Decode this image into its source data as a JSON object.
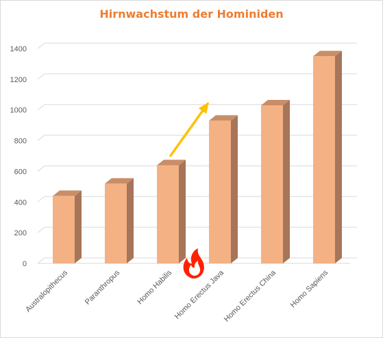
{
  "chart_data": {
    "type": "bar",
    "title": "Hirnwachstum der Hominiden",
    "categories": [
      "Australopithecus",
      "Paranthropus",
      "Homo Habilis",
      "Homo Erectus Java",
      "Homo Erectus China",
      "Homo Sapiens"
    ],
    "values": [
      440,
      520,
      640,
      930,
      1030,
      1350
    ],
    "ylim": [
      0,
      1400
    ],
    "yticks": [
      0,
      200,
      400,
      600,
      800,
      1000,
      1200,
      1400
    ],
    "grid": true,
    "style": "3d-column"
  },
  "colors": {
    "title": "#ed7d31",
    "bar_front": "#f4b183",
    "bar_side": "#a6755a",
    "bar_top": "#c98e68",
    "gridline": "#d9d9d9",
    "arrow": "#ffc000",
    "flame_outer": "#ff2200",
    "flame_inner": "#ffffff"
  },
  "annotations": {
    "arrow_icon": "up-right-arrow-icon",
    "flame_icon": "fire-icon"
  }
}
